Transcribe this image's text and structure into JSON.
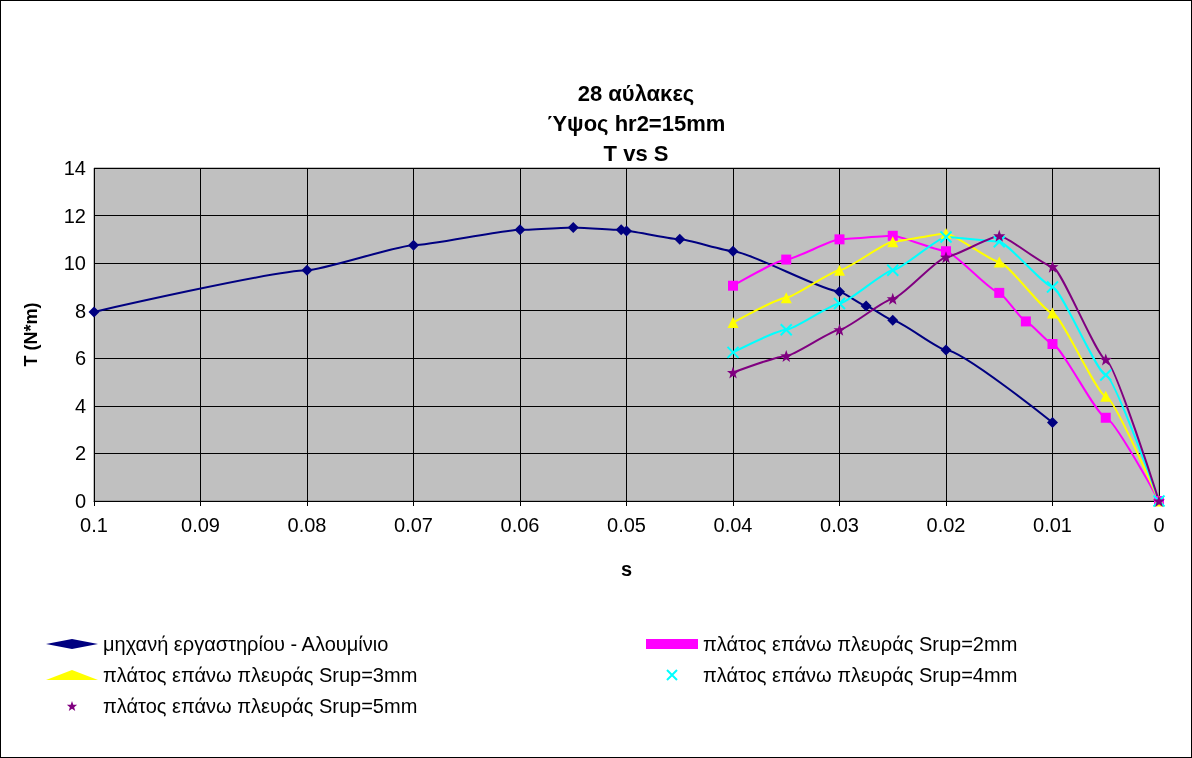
{
  "chart_data": {
    "type": "line",
    "title": "28 αύλακες\nΎψος hr2=15mm\nT vs S",
    "xlabel": "s",
    "ylabel": "T (N*m)",
    "xlim": [
      0.1,
      0
    ],
    "xticks": [
      0.1,
      0.09,
      0.08,
      0.07,
      0.06,
      0.05,
      0.04,
      0.03,
      0.02,
      0.01,
      0
    ],
    "ylim": [
      0,
      14
    ],
    "yticks": [
      0,
      2,
      4,
      6,
      8,
      10,
      12,
      14
    ],
    "grid": true,
    "legend": "bottom",
    "series": [
      {
        "name": "μηχανή εργαστηρίου - Αλουμίνιο",
        "color": "#000080",
        "marker": "diamond",
        "x": [
          0.1,
          0.08,
          0.07,
          0.06,
          0.055,
          0.0505,
          0.05,
          0.045,
          0.04,
          0.03,
          0.0275,
          0.025,
          0.02,
          0.01
        ],
        "values": [
          7.95,
          9.7,
          10.75,
          11.4,
          11.5,
          11.4,
          11.35,
          11.0,
          10.5,
          8.8,
          8.2,
          7.6,
          6.35,
          3.3
        ]
      },
      {
        "name": "πλάτος επάνω πλευράς Srup=2mm",
        "color": "#ff00ff",
        "marker": "square",
        "x": [
          0.04,
          0.035,
          0.03,
          0.025,
          0.02,
          0.015,
          0.0125,
          0.01,
          0.005,
          0
        ],
        "values": [
          9.05,
          10.15,
          11.0,
          11.15,
          10.5,
          8.75,
          7.55,
          6.6,
          3.5,
          0
        ]
      },
      {
        "name": "πλάτος επάνω πλευράς Srup=3mm",
        "color": "#ffff00",
        "marker": "triangle",
        "x": [
          0.04,
          0.035,
          0.03,
          0.025,
          0.02,
          0.015,
          0.01,
          0.005,
          0
        ],
        "values": [
          7.5,
          8.55,
          9.7,
          10.9,
          11.25,
          10.05,
          7.9,
          4.4,
          0
        ]
      },
      {
        "name": "πλάτος επάνω πλευράς Srup=4mm",
        "color": "#00ffff",
        "marker": "cross",
        "x": [
          0.04,
          0.035,
          0.03,
          0.025,
          0.02,
          0.015,
          0.01,
          0.005,
          0
        ],
        "values": [
          6.25,
          7.2,
          8.3,
          9.7,
          11.1,
          10.9,
          9.0,
          5.3,
          0
        ]
      },
      {
        "name": "πλάτος επάνω πλευράς Srup=5mm",
        "color": "#800080",
        "marker": "star",
        "x": [
          0.04,
          0.035,
          0.03,
          0.025,
          0.02,
          0.015,
          0.01,
          0.005,
          0
        ],
        "values": [
          5.4,
          6.1,
          7.2,
          8.5,
          10.25,
          11.15,
          9.85,
          5.95,
          0
        ]
      }
    ]
  }
}
